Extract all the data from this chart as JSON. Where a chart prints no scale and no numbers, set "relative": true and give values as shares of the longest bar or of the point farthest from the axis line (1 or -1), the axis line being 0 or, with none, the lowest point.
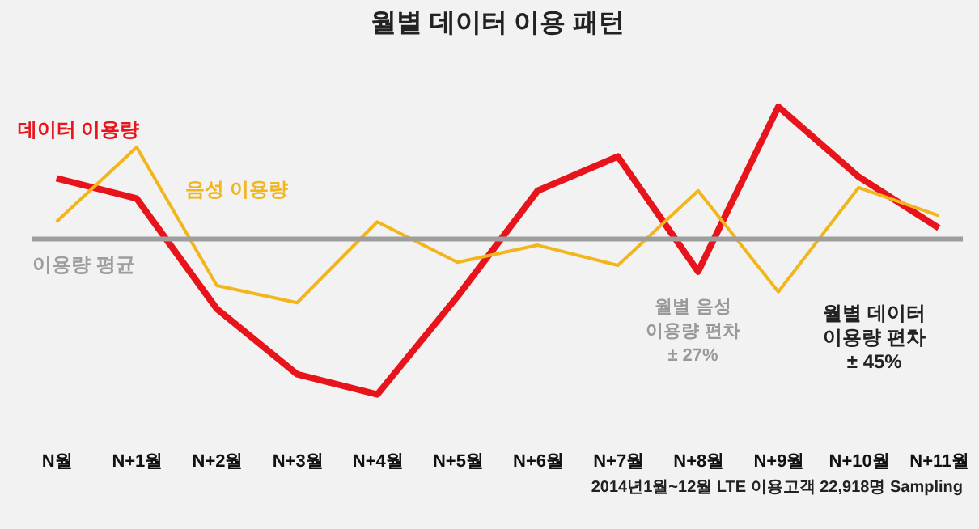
{
  "chart_data": {
    "type": "line",
    "title": "월별 데이터 이용 패턴",
    "relative": true,
    "legend": false,
    "grid": false,
    "categories": [
      "N월",
      "N+1월",
      "N+2월",
      "N+3월",
      "N+4월",
      "N+5월",
      "N+6월",
      "N+7월",
      "N+8월",
      "N+9월",
      "N+10월",
      "N+11월"
    ],
    "series": [
      {
        "name": "데이터 이용량",
        "color": "#e8141b",
        "values": [
          0.39,
          0.26,
          -0.45,
          -0.87,
          -1,
          -0.37,
          0.31,
          0.53,
          -0.21,
          0.85,
          0.4,
          0.07
        ]
      },
      {
        "name": "음성 이용량",
        "color": "#f2b61c",
        "values": [
          0.11,
          0.59,
          -0.3,
          -0.41,
          0.11,
          -0.15,
          -0.04,
          -0.17,
          0.31,
          -0.34,
          0.33,
          0.15
        ]
      }
    ],
    "ref_lines": [
      {
        "axis": "y",
        "value": 0,
        "label": "이용량 평균",
        "color": "#9e9e9e"
      }
    ],
    "annotations": [
      "월별 음성\n이용량 편차\n± 27%",
      "월별 데이터\n이용량 편차\n± 45%",
      "2014년1월~12월 LTE 이용고객 22,918명 Sampling"
    ]
  }
}
